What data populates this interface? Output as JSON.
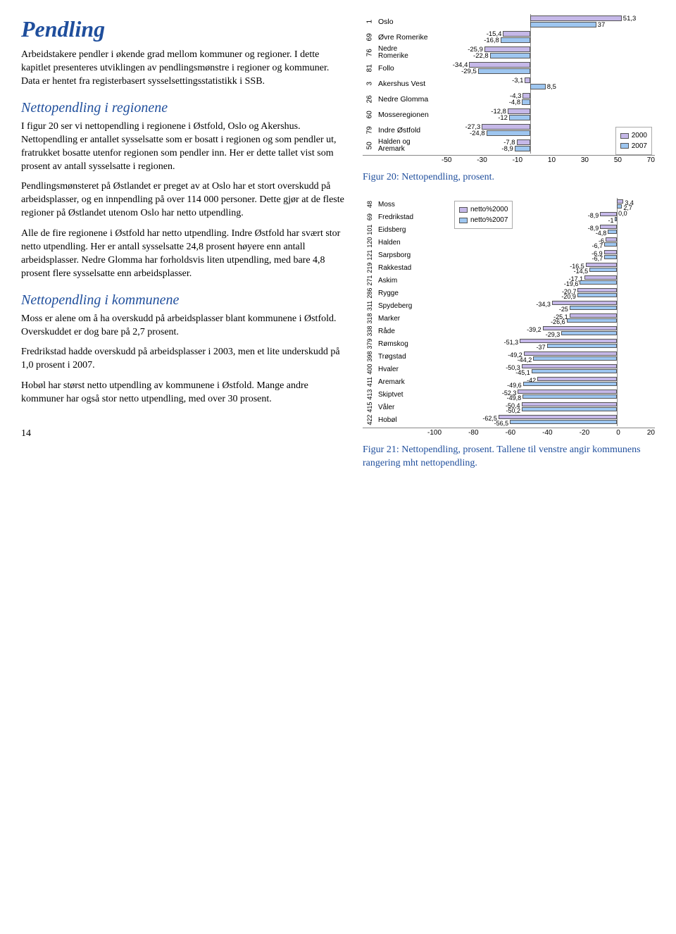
{
  "title": "Pendling",
  "intro": "Arbeidstakere pendler i økende grad mellom kommuner og regioner.  I dette kapitlet presenteres utviklingen av pendlingsmønstre i regioner og kommuner.  Data er hentet fra registerbasert sysselsettingsstatistikk i SSB.",
  "sec1_head": "Nettopendling i regionene",
  "sec1_p1": "I figur 20 ser vi nettopendling i regionene i Østfold, Oslo og Akershus.  Nettopendling er antallet sysselsatte som er bosatt i regionen og som pendler ut, fratrukket bosatte utenfor regionen som pendler inn.  Her er dette tallet vist som prosent av antall sysselsatte i regionen.",
  "sec1_p2": "Pendlingsmønsteret på Østlandet er preget av at Oslo har et stort overskudd på arbeidsplasser, og en innpendling på over 114 000 personer.  Dette gjør at de fleste regioner på Østlandet utenom Oslo har netto utpendling.",
  "sec1_p3": "Alle de fire regionene i Østfold har netto utpendling.  Indre Østfold har svært stor netto utpendling.  Her er antall sysselsatte 24,8 prosent høyere enn antall arbeidsplasser.  Nedre Glomma har forholdsvis liten utpendling, med bare 4,8 prosent flere sysselsatte enn arbeidsplasser.",
  "sec2_head": "Nettopendling i kommunene",
  "sec2_p1": "Moss er alene om å ha overskudd på arbeidsplasser blant kommunene i Østfold.  Overskuddet er dog bare på 2,7 prosent.",
  "sec2_p2": "Fredrikstad hadde overskudd på arbeidsplasser i 2003, men et lite underskudd på 1,0 prosent i 2007.",
  "sec2_p3": "Hobøl har størst netto utpendling av kommunene i Østfold.    Mange andre kommuner har også stor netto utpendling, med over 30 prosent.",
  "page_number": "14",
  "colors": {
    "s2000": "#c5b8e8",
    "s2007": "#9ec6f0",
    "heading": "#1f4e9c"
  },
  "chart1": {
    "type": "bar",
    "xlim": [
      -50,
      70
    ],
    "xticks": [
      -50,
      -30,
      -10,
      10,
      30,
      50,
      70
    ],
    "legend_labels": [
      "2000",
      "2007"
    ],
    "caption": "Figur 20: Nettopendling, prosent.",
    "rows": [
      {
        "code": "1",
        "label": "Oslo",
        "v2000": 51.3,
        "v2007": 37.0
      },
      {
        "code": "69",
        "label": "Øvre Romerike",
        "v2000": -15.4,
        "v2007": -16.8
      },
      {
        "code": "76",
        "label": "Nedre Romerike",
        "v2000": -25.9,
        "v2007": -22.8,
        "twoLine": true
      },
      {
        "code": "81",
        "label": "Follo",
        "v2000": -34.4,
        "v2007": -29.5
      },
      {
        "code": "3",
        "label": "Akershus Vest",
        "v2000": -3.1,
        "v2007": 8.5
      },
      {
        "code": "26",
        "label": "Nedre Glomma",
        "v2000": -4.3,
        "v2007": -4.8
      },
      {
        "code": "60",
        "label": "Mosseregionen",
        "v2000": -12.8,
        "v2007": -12.0
      },
      {
        "code": "79",
        "label": "Indre Østfold",
        "v2000": -27.3,
        "v2007": -24.8
      },
      {
        "code": "50",
        "label": "Halden og Aremark",
        "v2000": -7.8,
        "v2007": -8.9,
        "twoLine": true
      }
    ]
  },
  "chart2": {
    "type": "bar",
    "xlim": [
      -100,
      20
    ],
    "xticks": [
      -100,
      -80,
      -60,
      -40,
      -20,
      0,
      20
    ],
    "legend_labels": [
      "netto%2000",
      "netto%2007"
    ],
    "caption": "Figur 21: Nettopendling, prosent.  Tallene til venstre angir kommunens rangering mht nettopendling.",
    "rows": [
      {
        "code": "48",
        "label": "Moss",
        "v2000": 3.4,
        "v2007": 2.7,
        "extra": "0,0"
      },
      {
        "code": "69",
        "label": "Fredrikstad",
        "v2000": -8.9,
        "v2007": -1.0
      },
      {
        "code": "101",
        "label": "Eidsberg",
        "v2000": -8.9,
        "v2007": -4.8
      },
      {
        "code": "120",
        "label": "Halden",
        "v2000": -6.0,
        "v2007": -6.7
      },
      {
        "code": "121",
        "label": "Sarpsborg",
        "v2000": -6.9,
        "v2007": -6.7
      },
      {
        "code": "219",
        "label": "Rakkestad",
        "v2000": -16.5,
        "v2007": -14.5
      },
      {
        "code": "271",
        "label": "Askim",
        "v2000": -17.1,
        "v2007": -19.6
      },
      {
        "code": "286",
        "label": "Rygge",
        "v2000": -20.7,
        "v2007": -20.9
      },
      {
        "code": "311",
        "label": "Spydeberg",
        "v2000": -34.3,
        "v2007": -25.0
      },
      {
        "code": "318",
        "label": "Marker",
        "v2000": -25.1,
        "v2007": -26.6
      },
      {
        "code": "338",
        "label": "Råde",
        "v2000": -39.2,
        "v2007": -29.3
      },
      {
        "code": "379",
        "label": "Rømskog",
        "v2000": -51.3,
        "v2007": -37.0
      },
      {
        "code": "398",
        "label": "Trøgstad",
        "v2000": -49.2,
        "v2007": -44.2
      },
      {
        "code": "400",
        "label": "Hvaler",
        "v2000": -50.3,
        "v2007": -45.1
      },
      {
        "code": "411",
        "label": "Aremark",
        "v2000": -42.0,
        "v2007": -49.6
      },
      {
        "code": "413",
        "label": "Skiptvet",
        "v2000": -52.3,
        "v2007": -49.8
      },
      {
        "code": "415",
        "label": "Våler",
        "v2000": -50.4,
        "v2007": -50.2
      },
      {
        "code": "422",
        "label": "Hobøl",
        "v2000": -62.5,
        "v2007": -56.5
      }
    ]
  }
}
